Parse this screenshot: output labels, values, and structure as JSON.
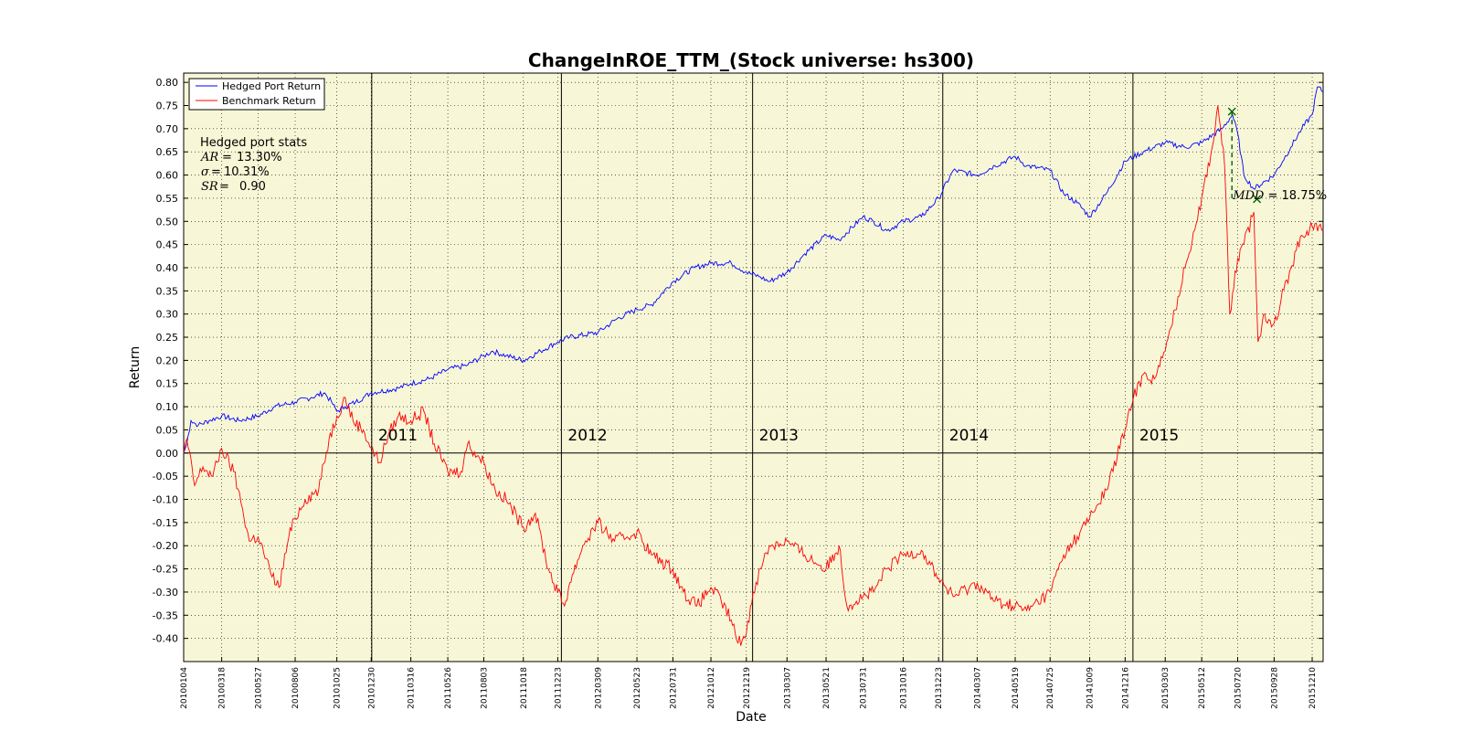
{
  "chart_data": {
    "type": "line",
    "title": "ChangeInROE_TTM_(Stock universe: hs300)",
    "xlabel": "Date",
    "ylabel": "Return",
    "ylim": [
      -0.45,
      0.82
    ],
    "yticks": [
      0.8,
      0.75,
      0.7,
      0.65,
      0.6,
      0.55,
      0.5,
      0.45,
      0.4,
      0.35,
      0.3,
      0.25,
      0.2,
      0.15,
      0.1,
      0.05,
      0.0,
      -0.05,
      -0.1,
      -0.15,
      -0.2,
      -0.25,
      -0.3,
      -0.35,
      -0.4
    ],
    "ytick_labels": [
      "0.80",
      "0.75",
      "0.70",
      "0.65",
      "0.60",
      "0.55",
      "0.50",
      "0.45",
      "0.40",
      "0.35",
      "0.30",
      "0.25",
      "0.20",
      "0.15",
      "0.10",
      "0.05",
      "0.00",
      "-0.05",
      "-0.10",
      "-0.15",
      "-0.20",
      "-0.25",
      "-0.30",
      "-0.35",
      "-0.40"
    ],
    "xtick_labels": [
      "20100104",
      "20100318",
      "20100527",
      "20100806",
      "20101025",
      "20101230",
      "20110316",
      "20110526",
      "20110803",
      "20111018",
      "20111223",
      "20120309",
      "20120523",
      "20120731",
      "20121012",
      "20121219",
      "20130307",
      "20130521",
      "20130731",
      "20131016",
      "20131223",
      "20140307",
      "20140519",
      "20140725",
      "20141009",
      "20141216",
      "20150303",
      "20150512",
      "20150720",
      "20150928",
      "20151210"
    ],
    "grid": true,
    "background_color": "#f7f7d7",
    "legend_placement": "top-left",
    "year_labels": [
      "2011",
      "2012",
      "2013",
      "2014",
      "2015"
    ],
    "year_boundaries": [
      "20101231",
      "20111230",
      "20121231",
      "20131231",
      "20141231"
    ],
    "series": [
      {
        "name": "Hedged Port Return",
        "color": "#0000ff",
        "points": [
          [
            "20100104",
            0.0
          ],
          [
            "20100110",
            0.02
          ],
          [
            "20100118",
            0.07
          ],
          [
            "20100201",
            0.06
          ],
          [
            "20100222",
            0.07
          ],
          [
            "20100318",
            0.08
          ],
          [
            "20100420",
            0.07
          ],
          [
            "20100527",
            0.08
          ],
          [
            "20100627",
            0.1
          ],
          [
            "20100806",
            0.11
          ],
          [
            "20100906",
            0.12
          ],
          [
            "20101001",
            0.13
          ],
          [
            "20101015",
            0.11
          ],
          [
            "20101025",
            0.09
          ],
          [
            "20101110",
            0.1
          ],
          [
            "20101130",
            0.11
          ],
          [
            "20101215",
            0.12
          ],
          [
            "20101230",
            0.13
          ],
          [
            "20110220",
            0.14
          ],
          [
            "20110316",
            0.15
          ],
          [
            "20110420",
            0.16
          ],
          [
            "20110526",
            0.18
          ],
          [
            "20110703",
            0.19
          ],
          [
            "20110803",
            0.21
          ],
          [
            "20110820",
            0.22
          ],
          [
            "20110915",
            0.21
          ],
          [
            "20111018",
            0.2
          ],
          [
            "20111120",
            0.22
          ],
          [
            "20111223",
            0.24
          ],
          [
            "20120115",
            0.25
          ],
          [
            "20120309",
            0.26
          ],
          [
            "20120415",
            0.29
          ],
          [
            "20120523",
            0.31
          ],
          [
            "20120620",
            0.32
          ],
          [
            "20120731",
            0.37
          ],
          [
            "20120910",
            0.4
          ],
          [
            "20121012",
            0.41
          ],
          [
            "20121120",
            0.41
          ],
          [
            "20121219",
            0.39
          ],
          [
            "20130115",
            0.38
          ],
          [
            "20130201",
            0.37
          ],
          [
            "20130307",
            0.39
          ],
          [
            "20130410",
            0.43
          ],
          [
            "20130521",
            0.47
          ],
          [
            "20130615",
            0.46
          ],
          [
            "20130731",
            0.51
          ],
          [
            "20130820",
            0.5
          ],
          [
            "20130915",
            0.48
          ],
          [
            "20131016",
            0.5
          ],
          [
            "20131120",
            0.51
          ],
          [
            "20131223",
            0.55
          ],
          [
            "20140120",
            0.61
          ],
          [
            "20140307",
            0.6
          ],
          [
            "20140410",
            0.62
          ],
          [
            "20140519",
            0.64
          ],
          [
            "20140610",
            0.62
          ],
          [
            "20140725",
            0.61
          ],
          [
            "20140820",
            0.56
          ],
          [
            "20140915",
            0.54
          ],
          [
            "20141009",
            0.51
          ],
          [
            "20141110",
            0.56
          ],
          [
            "20141216",
            0.63
          ],
          [
            "20150120",
            0.65
          ],
          [
            "20150303",
            0.67
          ],
          [
            "20150410",
            0.66
          ],
          [
            "20150512",
            0.67
          ],
          [
            "20150620",
            0.7
          ],
          [
            "20150710",
            0.73
          ],
          [
            "20150720",
            0.69
          ],
          [
            "20150801",
            0.6
          ],
          [
            "20150820",
            0.57
          ],
          [
            "20150928",
            0.6
          ],
          [
            "20151030",
            0.66
          ],
          [
            "20151120",
            0.7
          ],
          [
            "20151210",
            0.73
          ],
          [
            "20151220",
            0.79
          ],
          [
            "20151231",
            0.78
          ]
        ]
      },
      {
        "name": "Benchmark Return",
        "color": "#ff0000",
        "points": [
          [
            "20100104",
            0.0
          ],
          [
            "20100110",
            0.03
          ],
          [
            "20100125",
            -0.07
          ],
          [
            "20100210",
            -0.03
          ],
          [
            "20100301",
            -0.05
          ],
          [
            "20100318",
            0.01
          ],
          [
            "20100410",
            -0.04
          ],
          [
            "20100427",
            -0.12
          ],
          [
            "20100510",
            -0.19
          ],
          [
            "20100527",
            -0.18
          ],
          [
            "20100620",
            -0.26
          ],
          [
            "20100706",
            -0.29
          ],
          [
            "20100725",
            -0.18
          ],
          [
            "20100806",
            -0.14
          ],
          [
            "20100825",
            -0.1
          ],
          [
            "20100920",
            -0.08
          ],
          [
            "20101010",
            0.03
          ],
          [
            "20101025",
            0.08
          ],
          [
            "20101110",
            0.12
          ],
          [
            "20101125",
            0.07
          ],
          [
            "20101215",
            0.05
          ],
          [
            "20101230",
            0.01
          ],
          [
            "20110115",
            -0.02
          ],
          [
            "20110201",
            0.04
          ],
          [
            "20110220",
            0.08
          ],
          [
            "20110316",
            0.07
          ],
          [
            "20110410",
            0.09
          ],
          [
            "20110430",
            0.02
          ],
          [
            "20110526",
            -0.04
          ],
          [
            "20110620",
            -0.04
          ],
          [
            "20110703",
            0.02
          ],
          [
            "20110803",
            -0.02
          ],
          [
            "20110825",
            -0.08
          ],
          [
            "20110915",
            -0.1
          ],
          [
            "20111018",
            -0.16
          ],
          [
            "20111110",
            -0.13
          ],
          [
            "20111205",
            -0.25
          ],
          [
            "20111223",
            -0.3
          ],
          [
            "20120105",
            -0.33
          ],
          [
            "20120115",
            -0.28
          ],
          [
            "20120209",
            -0.2
          ],
          [
            "20120309",
            -0.15
          ],
          [
            "20120410",
            -0.19
          ],
          [
            "20120523",
            -0.17
          ],
          [
            "20120620",
            -0.22
          ],
          [
            "20120731",
            -0.25
          ],
          [
            "20120820",
            -0.3
          ],
          [
            "20120915",
            -0.33
          ],
          [
            "20121012",
            -0.29
          ],
          [
            "20121101",
            -0.32
          ],
          [
            "20121120",
            -0.36
          ],
          [
            "20121203",
            -0.41
          ],
          [
            "20121219",
            -0.39
          ],
          [
            "20130101",
            -0.3
          ],
          [
            "20130115",
            -0.25
          ],
          [
            "20130201",
            -0.2
          ],
          [
            "20130307",
            -0.19
          ],
          [
            "20130410",
            -0.22
          ],
          [
            "20130521",
            -0.25
          ],
          [
            "20130615",
            -0.2
          ],
          [
            "20130630",
            -0.33
          ],
          [
            "20130731",
            -0.31
          ],
          [
            "20130820",
            -0.3
          ],
          [
            "20130915",
            -0.25
          ],
          [
            "20131016",
            -0.22
          ],
          [
            "20131120",
            -0.21
          ],
          [
            "20131223",
            -0.27
          ],
          [
            "20140120",
            -0.31
          ],
          [
            "20140307",
            -0.28
          ],
          [
            "20140410",
            -0.32
          ],
          [
            "20140519",
            -0.33
          ],
          [
            "20140610",
            -0.34
          ],
          [
            "20140725",
            -0.3
          ],
          [
            "20140820",
            -0.22
          ],
          [
            "20140915",
            -0.18
          ],
          [
            "20141009",
            -0.14
          ],
          [
            "20141110",
            -0.08
          ],
          [
            "20141216",
            0.05
          ],
          [
            "20150101",
            0.12
          ],
          [
            "20150120",
            0.17
          ],
          [
            "20150210",
            0.16
          ],
          [
            "20150303",
            0.22
          ],
          [
            "20150410",
            0.4
          ],
          [
            "20150512",
            0.55
          ],
          [
            "20150601",
            0.66
          ],
          [
            "20150612",
            0.75
          ],
          [
            "20150625",
            0.62
          ],
          [
            "20150705",
            0.3
          ],
          [
            "20150720",
            0.42
          ],
          [
            "20150801",
            0.45
          ],
          [
            "20150820",
            0.52
          ],
          [
            "20150828",
            0.24
          ],
          [
            "20150910",
            0.3
          ],
          [
            "20150928",
            0.28
          ],
          [
            "20151030",
            0.4
          ],
          [
            "20151120",
            0.47
          ],
          [
            "20151210",
            0.49
          ],
          [
            "20151231",
            0.48
          ]
        ]
      }
    ],
    "mdd": {
      "peak": [
        "20150709",
        0.737
      ],
      "trough": [
        "20150826",
        0.548
      ],
      "label_math": "MDD",
      "label_value": "18.75%",
      "color": "#006400"
    },
    "stats": {
      "title": "Hedged port stats",
      "rows": [
        {
          "math": "AR",
          "value": "13.30%"
        },
        {
          "math": "σ",
          "value": "10.31%"
        },
        {
          "math": "SR",
          "value": "0.90"
        }
      ]
    }
  }
}
